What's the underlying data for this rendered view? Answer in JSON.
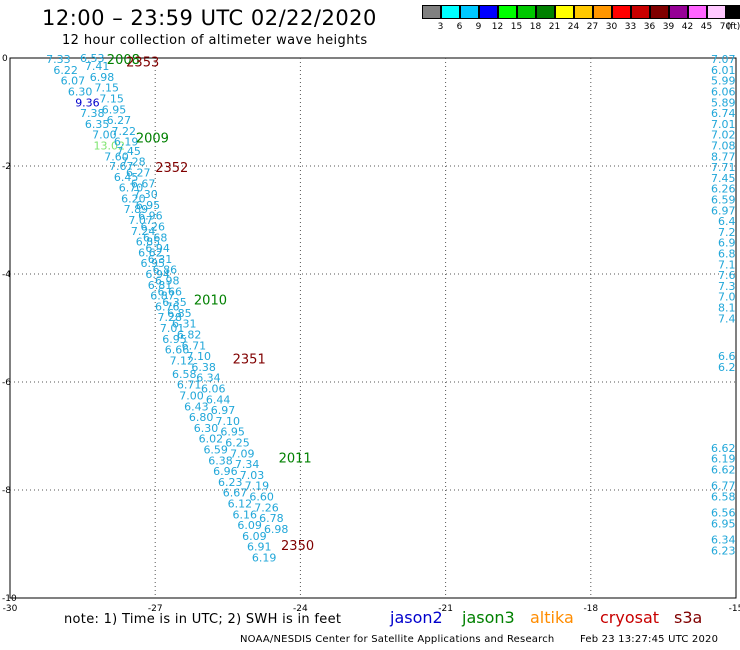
{
  "title": "12:00 – 23:59 UTC 02/22/2020",
  "subtitle": "12 hour collection of altimeter wave heights",
  "scale": {
    "labels": [
      "3",
      "6",
      "9",
      "12",
      "15",
      "18",
      "21",
      "24",
      "27",
      "30",
      "33",
      "36",
      "39",
      "42",
      "45",
      "70",
      "(ft)"
    ],
    "colors": [
      "#808080",
      "#00ffff",
      "#00c8ff",
      "#0000ff",
      "#00ff00",
      "#00c800",
      "#008000",
      "#ffff00",
      "#ffc800",
      "#ff9600",
      "#ff0000",
      "#c80000",
      "#800000",
      "#960096",
      "#ff64ff",
      "#ffc8ff",
      "#000000"
    ]
  },
  "colors": {
    "cyan_value": "#21a7d9",
    "blue_value": "#0000cc",
    "light_green_value": "#7ee46f",
    "jason3_time": "#008000",
    "cryosat_time": "#800000"
  },
  "axes": {
    "lon_labels": [
      "-30",
      "-27",
      "-24",
      "-21",
      "-18",
      "-15"
    ],
    "lon_values": [
      -30,
      -27,
      -24,
      -21,
      -18,
      -15
    ],
    "lat_labels": [
      "0",
      "-2",
      "-4",
      "-6",
      "-8",
      "-10"
    ],
    "lat_values": [
      0,
      -2,
      -4,
      -6,
      -8,
      -10
    ],
    "lon_range": [
      -30,
      -15
    ],
    "lat_range": [
      -10,
      0
    ],
    "grid": "dotted"
  },
  "chart_data": {
    "type": "scatter",
    "units": "ft",
    "track_a": [
      {
        "v": "7.33",
        "lon": -29.0,
        "lat": -0.02,
        "c": "cyan"
      },
      {
        "v": "6.22",
        "lon": -28.85,
        "lat": -0.22,
        "c": "cyan"
      },
      {
        "v": "6.07",
        "lon": -28.7,
        "lat": -0.42,
        "c": "cyan"
      },
      {
        "v": "6.30",
        "lon": -28.55,
        "lat": -0.62,
        "c": "cyan"
      },
      {
        "v": "9.36",
        "lon": -28.4,
        "lat": -0.82,
        "c": "blue"
      },
      {
        "v": "7.38",
        "lon": -28.3,
        "lat": -1.02,
        "c": "cyan"
      },
      {
        "v": "6.35",
        "lon": -28.2,
        "lat": -1.22,
        "c": "cyan"
      },
      {
        "v": "7.00",
        "lon": -28.05,
        "lat": -1.42,
        "c": "cyan"
      },
      {
        "v": "13.02",
        "lon": -27.95,
        "lat": -1.62,
        "c": "lightgreen"
      },
      {
        "v": "7.60",
        "lon": -27.8,
        "lat": -1.82,
        "c": "cyan"
      },
      {
        "v": "7.67",
        "lon": -27.7,
        "lat": -2.0,
        "c": "cyan"
      },
      {
        "v": "6.45",
        "lon": -27.6,
        "lat": -2.2,
        "c": "cyan"
      },
      {
        "v": "6.70",
        "lon": -27.5,
        "lat": -2.4,
        "c": "cyan"
      },
      {
        "v": "6.20",
        "lon": -27.45,
        "lat": -2.6,
        "c": "cyan"
      },
      {
        "v": "7.89",
        "lon": -27.4,
        "lat": -2.8,
        "c": "cyan"
      },
      {
        "v": "7.07",
        "lon": -27.3,
        "lat": -3.0,
        "c": "cyan"
      },
      {
        "v": "7.24",
        "lon": -27.25,
        "lat": -3.2,
        "c": "cyan"
      },
      {
        "v": "6.85",
        "lon": -27.15,
        "lat": -3.4,
        "c": "cyan"
      },
      {
        "v": "6.62",
        "lon": -27.1,
        "lat": -3.6,
        "c": "cyan"
      },
      {
        "v": "6.95",
        "lon": -27.05,
        "lat": -3.8,
        "c": "cyan"
      },
      {
        "v": "6.94",
        "lon": -26.95,
        "lat": -4.0,
        "c": "cyan"
      },
      {
        "v": "6.81",
        "lon": -26.9,
        "lat": -4.2,
        "c": "cyan"
      },
      {
        "v": "6.87",
        "lon": -26.85,
        "lat": -4.4,
        "c": "cyan"
      },
      {
        "v": "6.76",
        "lon": -26.75,
        "lat": -4.6,
        "c": "cyan"
      },
      {
        "v": "7.28",
        "lon": -26.7,
        "lat": -4.8,
        "c": "cyan"
      },
      {
        "v": "7.01",
        "lon": -26.65,
        "lat": -5.0,
        "c": "cyan"
      },
      {
        "v": "6.95",
        "lon": -26.6,
        "lat": -5.2,
        "c": "cyan"
      },
      {
        "v": "6.66",
        "lon": -26.55,
        "lat": -5.4,
        "c": "cyan"
      },
      {
        "v": "7.12",
        "lon": -26.45,
        "lat": -5.6,
        "c": "cyan"
      },
      {
        "v": "6.58",
        "lon": -26.4,
        "lat": -5.85,
        "c": "cyan"
      },
      {
        "v": "6.71",
        "lon": -26.3,
        "lat": -6.05,
        "c": "cyan"
      },
      {
        "v": "7.00",
        "lon": -26.25,
        "lat": -6.25,
        "c": "cyan"
      },
      {
        "v": "6.43",
        "lon": -26.15,
        "lat": -6.45,
        "c": "cyan"
      },
      {
        "v": "6.80",
        "lon": -26.05,
        "lat": -6.65,
        "c": "cyan"
      },
      {
        "v": "6.30",
        "lon": -25.95,
        "lat": -6.85,
        "c": "cyan"
      },
      {
        "v": "6.02",
        "lon": -25.85,
        "lat": -7.05,
        "c": "cyan"
      },
      {
        "v": "6.59",
        "lon": -25.75,
        "lat": -7.25,
        "c": "cyan"
      },
      {
        "v": "6.38",
        "lon": -25.65,
        "lat": -7.45,
        "c": "cyan"
      },
      {
        "v": "6.96",
        "lon": -25.55,
        "lat": -7.65,
        "c": "cyan"
      },
      {
        "v": "6.23",
        "lon": -25.45,
        "lat": -7.85,
        "c": "cyan"
      },
      {
        "v": "6.67",
        "lon": -25.35,
        "lat": -8.05,
        "c": "cyan"
      },
      {
        "v": "6.12",
        "lon": -25.25,
        "lat": -8.25,
        "c": "cyan"
      },
      {
        "v": "6.16",
        "lon": -25.15,
        "lat": -8.45,
        "c": "cyan"
      },
      {
        "v": "6.09",
        "lon": -25.05,
        "lat": -8.65,
        "c": "cyan"
      },
      {
        "v": "6.09",
        "lon": -24.95,
        "lat": -8.85,
        "c": "cyan"
      },
      {
        "v": "6.91",
        "lon": -24.85,
        "lat": -9.05,
        "c": "cyan"
      },
      {
        "v": "6.19",
        "lon": -24.75,
        "lat": -9.25,
        "c": "cyan"
      }
    ],
    "track_b": [
      {
        "v": "6.53",
        "lon": -28.3,
        "lat": 0.0,
        "c": "cyan"
      },
      {
        "v": "7.41",
        "lon": -28.2,
        "lat": -0.15,
        "c": "cyan"
      },
      {
        "v": "6.98",
        "lon": -28.1,
        "lat": -0.35,
        "c": "cyan"
      },
      {
        "v": "7.15",
        "lon": -28.0,
        "lat": -0.55,
        "c": "cyan"
      },
      {
        "v": "7.15",
        "lon": -27.9,
        "lat": -0.75,
        "c": "cyan"
      },
      {
        "v": "6.95",
        "lon": -27.85,
        "lat": -0.95,
        "c": "cyan"
      },
      {
        "v": "6.27",
        "lon": -27.75,
        "lat": -1.15,
        "c": "cyan"
      },
      {
        "v": "7.22",
        "lon": -27.65,
        "lat": -1.35,
        "c": "cyan"
      },
      {
        "v": "6.19",
        "lon": -27.6,
        "lat": -1.55,
        "c": "cyan"
      },
      {
        "v": "7.45",
        "lon": -27.55,
        "lat": -1.72,
        "c": "cyan"
      },
      {
        "v": "7.28",
        "lon": -27.45,
        "lat": -1.92,
        "c": "cyan"
      },
      {
        "v": "6.27",
        "lon": -27.35,
        "lat": -2.12,
        "c": "cyan"
      },
      {
        "v": "6.67",
        "lon": -27.25,
        "lat": -2.32,
        "c": "cyan"
      },
      {
        "v": "7.30",
        "lon": -27.2,
        "lat": -2.52,
        "c": "cyan"
      },
      {
        "v": "6.95",
        "lon": -27.15,
        "lat": -2.72,
        "c": "cyan"
      },
      {
        "v": "6.96",
        "lon": -27.1,
        "lat": -2.92,
        "c": "cyan"
      },
      {
        "v": "6.26",
        "lon": -27.05,
        "lat": -3.12,
        "c": "cyan"
      },
      {
        "v": "6.68",
        "lon": -27.0,
        "lat": -3.32,
        "c": "cyan"
      },
      {
        "v": "6.94",
        "lon": -26.95,
        "lat": -3.52,
        "c": "cyan"
      },
      {
        "v": "6.31",
        "lon": -26.9,
        "lat": -3.72,
        "c": "cyan"
      },
      {
        "v": "6.86",
        "lon": -26.8,
        "lat": -3.92,
        "c": "cyan"
      },
      {
        "v": "6.98",
        "lon": -26.75,
        "lat": -4.12,
        "c": "cyan"
      },
      {
        "v": "6.66",
        "lon": -26.7,
        "lat": -4.32,
        "c": "cyan"
      },
      {
        "v": "6.35",
        "lon": -26.6,
        "lat": -4.52,
        "c": "cyan"
      },
      {
        "v": "6.85",
        "lon": -26.5,
        "lat": -4.72,
        "c": "cyan"
      },
      {
        "v": "6.31",
        "lon": -26.4,
        "lat": -4.92,
        "c": "cyan"
      },
      {
        "v": "6.82",
        "lon": -26.3,
        "lat": -5.12,
        "c": "cyan"
      },
      {
        "v": "6.71",
        "lon": -26.2,
        "lat": -5.32,
        "c": "cyan"
      },
      {
        "v": "7.10",
        "lon": -26.1,
        "lat": -5.52,
        "c": "cyan"
      },
      {
        "v": "6.38",
        "lon": -26.0,
        "lat": -5.72,
        "c": "cyan"
      },
      {
        "v": "6.34",
        "lon": -25.9,
        "lat": -5.92,
        "c": "cyan"
      },
      {
        "v": "6.06",
        "lon": -25.8,
        "lat": -6.12,
        "c": "cyan"
      },
      {
        "v": "6.44",
        "lon": -25.7,
        "lat": -6.32,
        "c": "cyan"
      },
      {
        "v": "6.97",
        "lon": -25.6,
        "lat": -6.52,
        "c": "cyan"
      },
      {
        "v": "7.10",
        "lon": -25.5,
        "lat": -6.72,
        "c": "cyan"
      },
      {
        "v": "6.95",
        "lon": -25.4,
        "lat": -6.92,
        "c": "cyan"
      },
      {
        "v": "6.25",
        "lon": -25.3,
        "lat": -7.12,
        "c": "cyan"
      },
      {
        "v": "7.09",
        "lon": -25.2,
        "lat": -7.32,
        "c": "cyan"
      },
      {
        "v": "7.34",
        "lon": -25.1,
        "lat": -7.52,
        "c": "cyan"
      },
      {
        "v": "7.03",
        "lon": -25.0,
        "lat": -7.72,
        "c": "cyan"
      },
      {
        "v": "7.19",
        "lon": -24.9,
        "lat": -7.92,
        "c": "cyan"
      },
      {
        "v": "6.60",
        "lon": -24.8,
        "lat": -8.12,
        "c": "cyan"
      },
      {
        "v": "7.26",
        "lon": -24.7,
        "lat": -8.32,
        "c": "cyan"
      },
      {
        "v": "6.78",
        "lon": -24.6,
        "lat": -8.52,
        "c": "cyan"
      },
      {
        "v": "6.98",
        "lon": -24.5,
        "lat": -8.72,
        "c": "cyan"
      }
    ],
    "track_east": [
      {
        "v": "7.07",
        "lon": -15.3,
        "lat": -0.02,
        "c": "cyan"
      },
      {
        "v": "6.01",
        "lon": -15.3,
        "lat": -0.22,
        "c": "cyan"
      },
      {
        "v": "5.99",
        "lon": -15.3,
        "lat": -0.42,
        "c": "cyan"
      },
      {
        "v": "6.06",
        "lon": -15.3,
        "lat": -0.62,
        "c": "cyan"
      },
      {
        "v": "5.89",
        "lon": -15.3,
        "lat": -0.82,
        "c": "cyan"
      },
      {
        "v": "6.74",
        "lon": -15.3,
        "lat": -1.02,
        "c": "cyan"
      },
      {
        "v": "7.01",
        "lon": -15.3,
        "lat": -1.22,
        "c": "cyan"
      },
      {
        "v": "7.02",
        "lon": -15.3,
        "lat": -1.42,
        "c": "cyan"
      },
      {
        "v": "7.08",
        "lon": -15.3,
        "lat": -1.62,
        "c": "cyan"
      },
      {
        "v": "8.77",
        "lon": -15.3,
        "lat": -1.82,
        "c": "cyan"
      },
      {
        "v": "7.71",
        "lon": -15.3,
        "lat": -2.02,
        "c": "cyan"
      },
      {
        "v": "7.45",
        "lon": -15.3,
        "lat": -2.22,
        "c": "cyan"
      },
      {
        "v": "6.26",
        "lon": -15.3,
        "lat": -2.42,
        "c": "cyan"
      },
      {
        "v": "6.59",
        "lon": -15.3,
        "lat": -2.62,
        "c": "cyan"
      },
      {
        "v": "6.97",
        "lon": -15.3,
        "lat": -2.82,
        "c": "cyan"
      },
      {
        "v": "6.4",
        "lon": -15.3,
        "lat": -3.02,
        "c": "cyan"
      },
      {
        "v": "7.2",
        "lon": -15.3,
        "lat": -3.22,
        "c": "cyan"
      },
      {
        "v": "6.9",
        "lon": -15.3,
        "lat": -3.42,
        "c": "cyan"
      },
      {
        "v": "6.8",
        "lon": -15.3,
        "lat": -3.62,
        "c": "cyan"
      },
      {
        "v": "7.1",
        "lon": -15.3,
        "lat": -3.82,
        "c": "cyan"
      },
      {
        "v": "7.6",
        "lon": -15.3,
        "lat": -4.02,
        "c": "cyan"
      },
      {
        "v": "7.3",
        "lon": -15.3,
        "lat": -4.22,
        "c": "cyan"
      },
      {
        "v": "7.0",
        "lon": -15.3,
        "lat": -4.42,
        "c": "cyan"
      },
      {
        "v": "8.1",
        "lon": -15.3,
        "lat": -4.62,
        "c": "cyan"
      },
      {
        "v": "7.4",
        "lon": -15.3,
        "lat": -4.82,
        "c": "cyan"
      },
      {
        "v": "6.6",
        "lon": -15.3,
        "lat": -5.52,
        "c": "cyan"
      },
      {
        "v": "6.2",
        "lon": -15.3,
        "lat": -5.72,
        "c": "cyan"
      },
      {
        "v": "6.62",
        "lon": -15.3,
        "lat": -7.22,
        "c": "cyan"
      },
      {
        "v": "6.19",
        "lon": -15.3,
        "lat": -7.42,
        "c": "cyan"
      },
      {
        "v": "6.62",
        "lon": -15.3,
        "lat": -7.62,
        "c": "cyan"
      },
      {
        "v": "6.77",
        "lon": -15.3,
        "lat": -7.92,
        "c": "cyan"
      },
      {
        "v": "6.58",
        "lon": -15.3,
        "lat": -8.12,
        "c": "cyan"
      },
      {
        "v": "6.56",
        "lon": -15.3,
        "lat": -8.42,
        "c": "cyan"
      },
      {
        "v": "6.95",
        "lon": -15.3,
        "lat": -8.62,
        "c": "cyan"
      },
      {
        "v": "6.34",
        "lon": -15.3,
        "lat": -8.92,
        "c": "cyan"
      },
      {
        "v": "6.23",
        "lon": -15.3,
        "lat": -9.12,
        "c": "cyan"
      }
    ],
    "time_labels": [
      {
        "t": "2008",
        "lon": -28.0,
        "lat": 0.0,
        "sat": "jason3"
      },
      {
        "t": "2353",
        "lon": -27.6,
        "lat": -0.05,
        "sat": "cryosat"
      },
      {
        "t": "2009",
        "lon": -27.4,
        "lat": -1.45,
        "sat": "jason3"
      },
      {
        "t": "2352",
        "lon": -27.0,
        "lat": -2.0,
        "sat": "cryosat"
      },
      {
        "t": "2010",
        "lon": -26.2,
        "lat": -4.45,
        "sat": "jason3"
      },
      {
        "t": "2351",
        "lon": -25.4,
        "lat": -5.55,
        "sat": "cryosat"
      },
      {
        "t": "2011",
        "lon": -24.45,
        "lat": -7.38,
        "sat": "jason3"
      },
      {
        "t": "2350",
        "lon": -24.4,
        "lat": -9.0,
        "sat": "cryosat"
      }
    ]
  },
  "note": "note:  1) Time is in UTC; 2) SWH is in feet",
  "satellites": [
    {
      "name": "jason2",
      "color": "#0000cc"
    },
    {
      "name": "jason3",
      "color": "#008000"
    },
    {
      "name": "altika",
      "color": "#ff8c00"
    },
    {
      "name": "cryosat",
      "color": "#c80000"
    },
    {
      "name": "s3a",
      "color": "#800000"
    }
  ],
  "footer": {
    "org": "NOAA/NESDIS Center for Satellite Applications and Research",
    "timestamp": "Feb 23 13:27:45 UTC 2020"
  }
}
